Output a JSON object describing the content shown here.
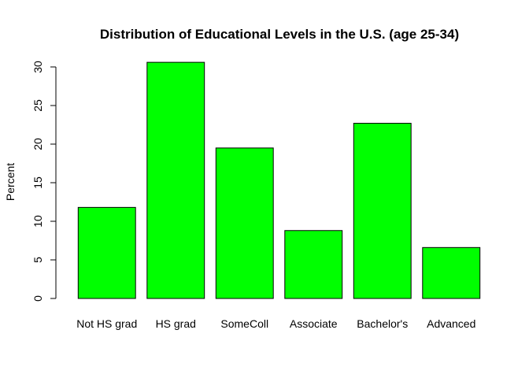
{
  "chart_data": {
    "type": "bar",
    "title": "Distribution of Educational Levels in the U.S. (age 25-34)",
    "xlabel": "",
    "ylabel": "Percent",
    "categories": [
      "Not HS grad",
      "HS grad",
      "SomeColl",
      "Associate",
      "Bachelor's",
      "Advanced"
    ],
    "values": [
      11.8,
      30.6,
      19.5,
      8.8,
      22.7,
      6.6
    ],
    "ylim": [
      0,
      30
    ],
    "yticks": [
      0,
      5,
      10,
      15,
      20,
      25,
      30
    ],
    "grid": false,
    "legend": "none",
    "bar_color": "#00FF00",
    "bar_border_color": "#000000"
  }
}
